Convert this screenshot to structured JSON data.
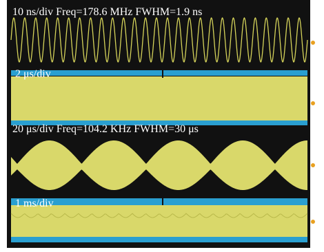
{
  "panels": [
    {
      "label": "10 ns/div Freq=178.6 MHz FWHM=1.9 ns"
    },
    {
      "label": "2 μs/div"
    },
    {
      "label": "20 μs/div Freq=104.2 KHz FWHM=30 μs"
    },
    {
      "label": "1 ms/div"
    }
  ]
}
